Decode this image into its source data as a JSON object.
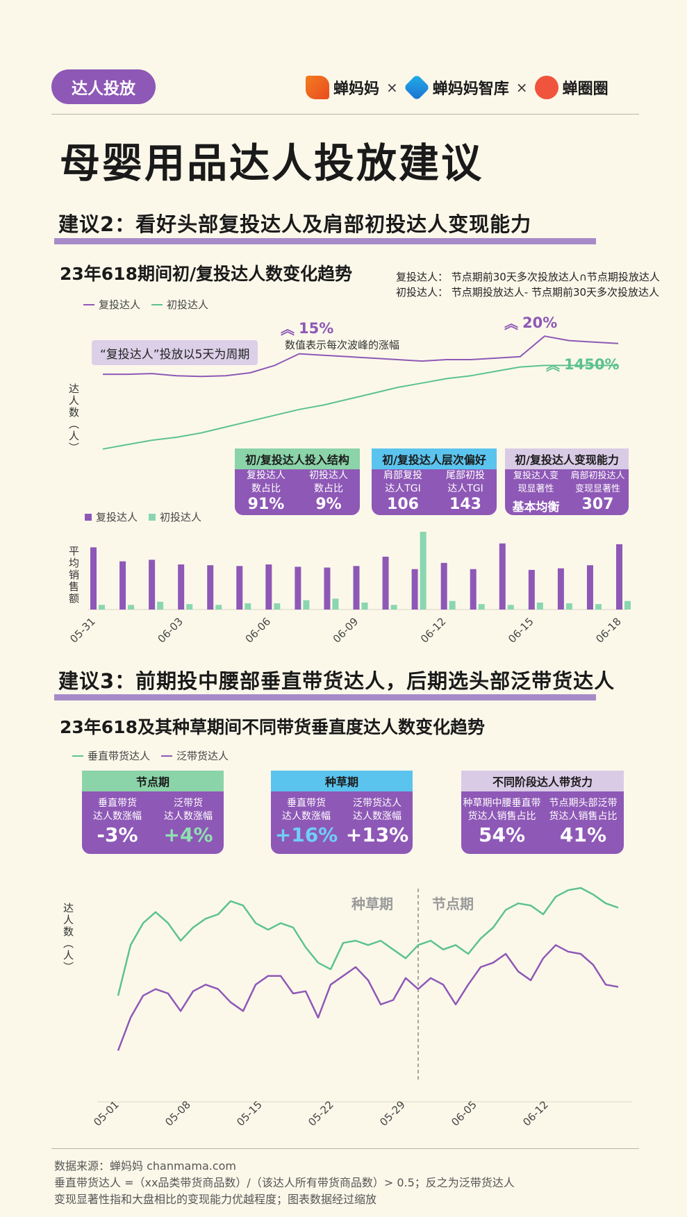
{
  "header": {
    "tag": "达人投放",
    "brands": [
      "蝉妈妈",
      "蝉妈妈智库",
      "蝉圈圈"
    ],
    "separator": "×"
  },
  "main_title": "母婴用品达人投放建议",
  "section2": {
    "title": "建议2：看好头部复投达人及肩部初投达人变现能力",
    "chart_title": "23年618期间初/复投达人数变化趋势",
    "note1": "复投达人： 节点期前30天多次投放达人∩节点期投放达人",
    "note2": "初投达人： 节点期投放达人- 节点期前30天多次投放达人",
    "legend": [
      "复投达人",
      "初投达人"
    ],
    "period_note": "“复投达人”投放以5天为周期",
    "peak_note": "数值表示每次波峰的涨幅",
    "pct1": "15%",
    "pct2": "20%",
    "pct3": "1450%",
    "ylabel": "达人数（人）",
    "bar_legend": [
      "复投达人",
      "初投达人"
    ],
    "bar_ylabel": "平均销售额",
    "cards": [
      {
        "head": "初/复投达人投入结构",
        "head_color": "#8bd3a8",
        "cols": [
          {
            "label": "复投达人\n数占比",
            "value": "91%"
          },
          {
            "label": "初投达人\n数占比",
            "value": "9%"
          }
        ]
      },
      {
        "head": "初/复投达人层次偏好",
        "head_color": "#5bc4ee",
        "cols": [
          {
            "label": "肩部复投\n达人TGI",
            "value": "106"
          },
          {
            "label": "尾部初投\n达人TGI",
            "value": "143"
          }
        ]
      },
      {
        "head": "初/复投达人变现能力",
        "head_color": "#d9cbe6",
        "cols": [
          {
            "label": "复投达人变\n现显著性",
            "value": "基本均衡"
          },
          {
            "label": "肩部初投达人\n变现显著性",
            "value": "307"
          }
        ]
      }
    ]
  },
  "section3": {
    "title": "建议3：前期投中腰部垂直带货达人，后期选头部泛带货达人",
    "chart_title": "23年618及其种草期间不同带货垂直度达人数变化趋势",
    "legend": [
      "垂直带货达人",
      "泛带货达人"
    ],
    "ylabel": "达人数（人）",
    "phase_left": "种草期",
    "phase_right": "节点期",
    "cards": [
      {
        "head": "节点期",
        "head_color": "#8bd3a8",
        "cols": [
          {
            "label": "垂直带货\n达人数涨幅",
            "value": "-3%",
            "color": "#ffffff"
          },
          {
            "label": "泛带货\n达人数涨幅",
            "value": "+4%",
            "color": "#8fe0b2"
          }
        ]
      },
      {
        "head": "种草期",
        "head_color": "#5bc4ee",
        "cols": [
          {
            "label": "垂直带货\n达人数涨幅",
            "value": "+16%",
            "color": "#6fd0f5"
          },
          {
            "label": "泛带货达人\n达人数涨幅",
            "value": "+13%",
            "color": "#ffffff"
          }
        ]
      },
      {
        "head": "不同阶段达人带货力",
        "head_color": "#d9cbe6",
        "cols": [
          {
            "label": "种草期中腰垂直带\n货达人销售占比",
            "value": "54%",
            "color": "#ffffff"
          },
          {
            "label": "节点期头部泛带\n货达人销售占比",
            "value": "41%",
            "color": "#ffffff"
          }
        ]
      }
    ]
  },
  "footer": [
    "数据来源：蝉妈妈 chanmama.com",
    "垂直带货达人 =（xx品类带货商品数）/（该达人所有带货商品数）> 0.5；反之为泛带货达人",
    "变现显著性指和大盘相比的变现能力优越程度；图表数据经过缩放"
  ],
  "colors": {
    "purple": "#8e58b6",
    "green": "#5cc28e",
    "light_green": "#8ad6b0"
  },
  "chart_data": [
    {
      "type": "line",
      "title": "23年618期间初/复投达人数变化趋势",
      "ylabel": "达人数（人）",
      "series": [
        {
          "name": "复投达人",
          "values": [
            62,
            62,
            62.5,
            61,
            60.5,
            61,
            63,
            68,
            76,
            75,
            74,
            73,
            72,
            71,
            72,
            72,
            73,
            74,
            88,
            85,
            84,
            83
          ]
        },
        {
          "name": "初投达人",
          "values": [
            11,
            14,
            17,
            19,
            22,
            26,
            30,
            34,
            38,
            41,
            45,
            49,
            53,
            56,
            59,
            61,
            64,
            67,
            68,
            68,
            68,
            68
          ]
        }
      ]
    },
    {
      "type": "bar",
      "ylabel": "平均销售额",
      "categories": [
        "05-31",
        "06-01",
        "06-02",
        "06-03",
        "06-04",
        "06-05",
        "06-06",
        "06-07",
        "06-08",
        "06-09",
        "06-10",
        "06-11",
        "06-12",
        "06-13",
        "06-14",
        "06-15",
        "06-16",
        "06-17",
        "06-18"
      ],
      "tick_labels": [
        "05-31",
        "06-03",
        "06-06",
        "06-09",
        "06-12",
        "06-15",
        "06-18"
      ],
      "ylim": [
        0,
        100
      ],
      "series": [
        {
          "name": "复投达人",
          "values": [
            80,
            62,
            64,
            58,
            57,
            56,
            58,
            55,
            54,
            56,
            68,
            52,
            60,
            52,
            85,
            51,
            53,
            57,
            84
          ]
        },
        {
          "name": "初投达人",
          "values": [
            6,
            6,
            10,
            7,
            6,
            8,
            8,
            12,
            14,
            9,
            6,
            100,
            11,
            7,
            6,
            9,
            8,
            7,
            11
          ]
        }
      ]
    },
    {
      "type": "line",
      "title": "23年618及其种草期间不同带货垂直度达人数变化趋势",
      "ylabel": "达人数（人）",
      "tick_labels": [
        "05-01",
        "05-08",
        "05-15",
        "05-22",
        "05-29",
        "06-05",
        "06-12"
      ],
      "series": [
        {
          "name": "垂直带货达人",
          "values": [
            35,
            58,
            68,
            73,
            68,
            60,
            66,
            70,
            72,
            78,
            76,
            68,
            65,
            68,
            66,
            57,
            50,
            47,
            59,
            60,
            58,
            60,
            56,
            52,
            58,
            60,
            56,
            58,
            54,
            61,
            66,
            74,
            77,
            76,
            72,
            80,
            83,
            84,
            81,
            77,
            75
          ]
        },
        {
          "name": "泛带货达人",
          "values": [
            10,
            25,
            35,
            38,
            36,
            28,
            37,
            40,
            38,
            32,
            28,
            40,
            44,
            44,
            36,
            37,
            25,
            40,
            44,
            48,
            42,
            31,
            33,
            43,
            38,
            43,
            40,
            31,
            40,
            48,
            50,
            54,
            46,
            42,
            52,
            58,
            55,
            54,
            49,
            40,
            39
          ]
        }
      ],
      "phase_split_index": 24
    }
  ]
}
